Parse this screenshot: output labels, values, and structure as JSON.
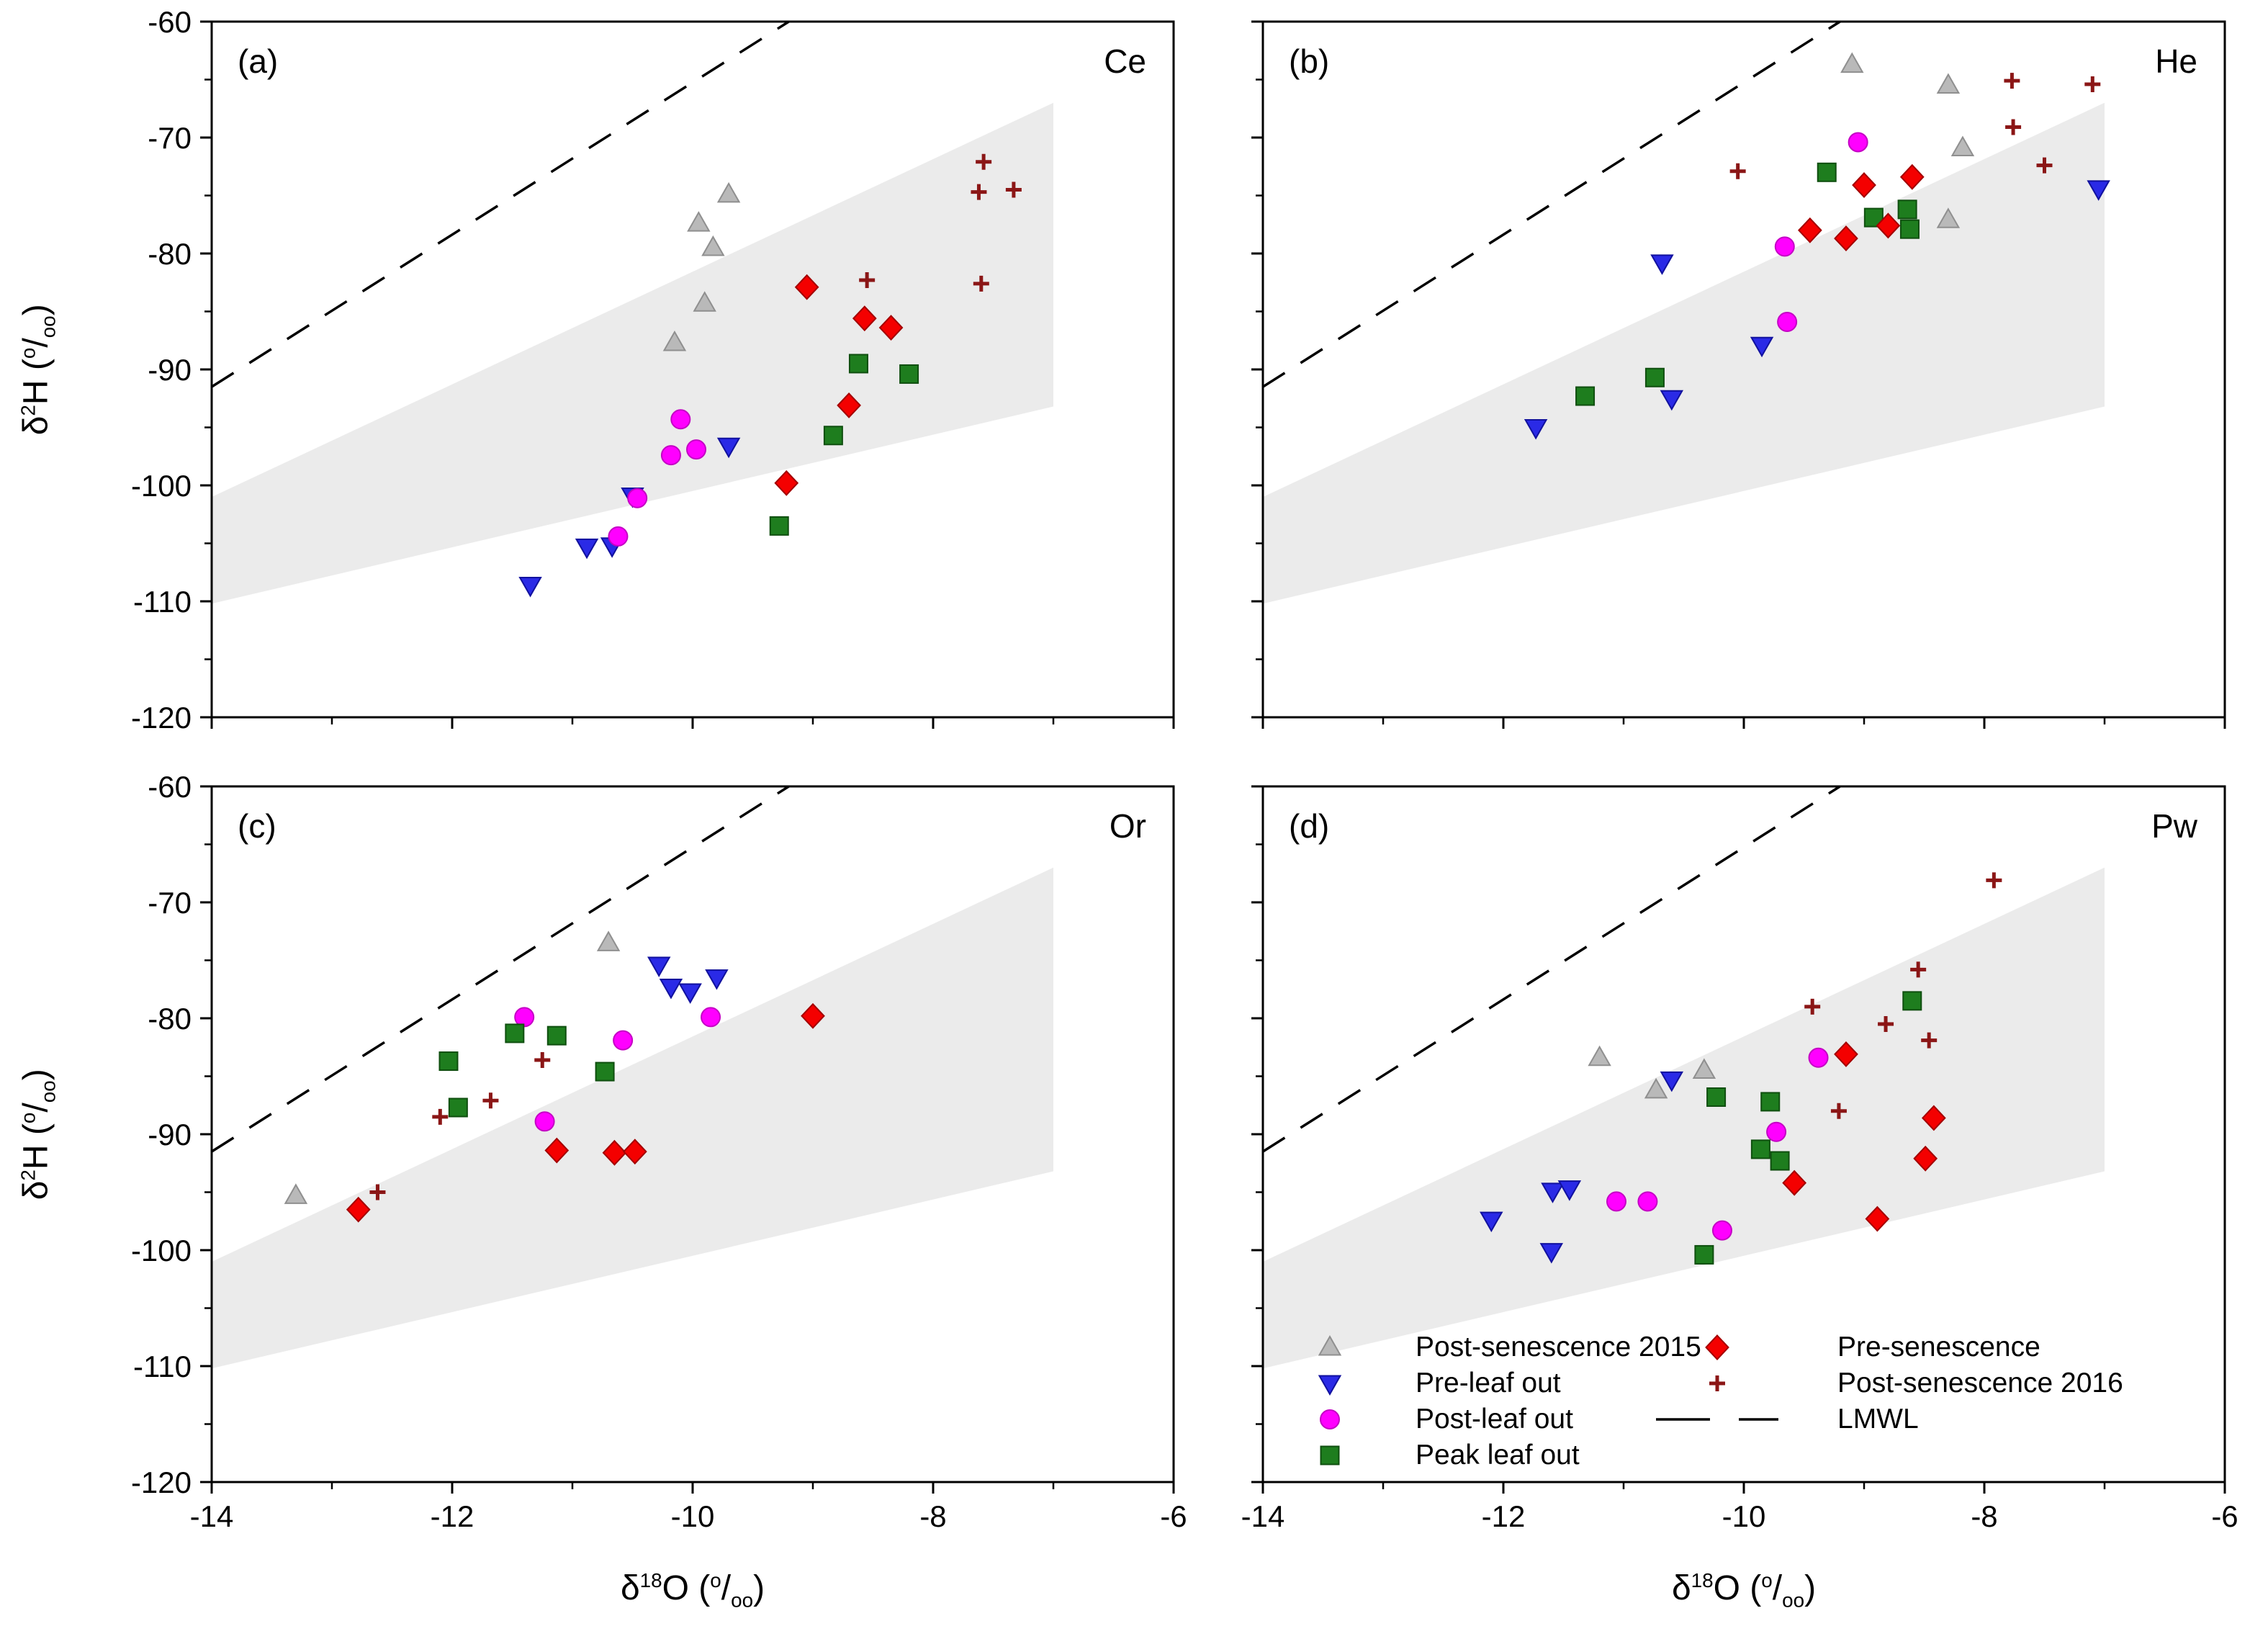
{
  "labels": {
    "y_axis": {
      "delta": "δ",
      "iso": "2",
      "rest": "H (",
      "permil_sup": "o",
      "permil_slash": "/",
      "permil_sub": "oo",
      "close": ")"
    },
    "x_axis": {
      "delta": "δ",
      "iso": "18",
      "rest": "O (",
      "permil_sup": "o",
      "permil_slash": "/",
      "permil_sub": "oo",
      "close": ")"
    }
  },
  "chart_data": {
    "type": "scatter",
    "x_axis": {
      "label": "δ18O (o/oo)",
      "min": -14,
      "max": -6,
      "major_ticks": [
        -14,
        -12,
        -10,
        -8,
        -6
      ],
      "minor_ticks": [
        -13,
        -11,
        -9,
        -7
      ]
    },
    "y_axis": {
      "label": "δ2H (o/oo)",
      "min": -120,
      "max": -60,
      "major_ticks": [
        -60,
        -70,
        -80,
        -90,
        -100,
        -110,
        -120
      ],
      "minor_ticks": [
        -65,
        -75,
        -85,
        -95,
        -105,
        -115
      ]
    },
    "lmwl": {
      "style": "dashed",
      "color": "#000000",
      "points": [
        [
          -14,
          -91.5
        ],
        [
          -9.2,
          -60
        ]
      ]
    },
    "envelope": {
      "fill": "#ebebeb",
      "polygon": [
        [
          -14,
          -101
        ],
        [
          -7,
          -67
        ],
        [
          -7,
          -93.2
        ],
        [
          -14,
          -110.2
        ]
      ]
    },
    "series_order": [
      "post2015",
      "preleaf",
      "postleaf",
      "peak",
      "presen",
      "post2016"
    ],
    "series_styles": [
      {
        "key": "post2015",
        "name": "Post-senescence 2015",
        "marker": "triangle-up",
        "color": "#b9b9b9",
        "stroke": "#8f8f8f"
      },
      {
        "key": "preleaf",
        "name": "Pre-leaf out",
        "marker": "triangle-down",
        "color": "#2a2ae6",
        "stroke": "#11119e"
      },
      {
        "key": "postleaf",
        "name": "Post-leaf out",
        "marker": "circle",
        "color": "#ff00ff",
        "stroke": "#c400c4"
      },
      {
        "key": "peak",
        "name": "Peak leaf out",
        "marker": "square",
        "color": "#1e7d1e",
        "stroke": "#0f4f0f"
      },
      {
        "key": "presen",
        "name": "Pre-senescence",
        "marker": "diamond",
        "color": "#f40000",
        "stroke": "#a30000"
      },
      {
        "key": "post2016",
        "name": "Post-senescence 2016",
        "marker": "plus",
        "color": "#8b1616"
      },
      {
        "key": "lmwl",
        "name": "LMWL",
        "marker": "dash",
        "color": "#000000"
      }
    ],
    "panels": [
      {
        "id": "a",
        "label": "(a)",
        "species": "Ce",
        "data": {
          "post2015": [
            [
              -9.7,
              -74.9
            ],
            [
              -9.95,
              -77.4
            ],
            [
              -9.83,
              -79.5
            ],
            [
              -9.9,
              -84.3
            ],
            [
              -10.15,
              -87.7
            ]
          ],
          "preleaf": [
            [
              -9.7,
              -96.6
            ],
            [
              -10.5,
              -100.9
            ],
            [
              -10.88,
              -105.3
            ],
            [
              -10.67,
              -105.2
            ],
            [
              -11.35,
              -108.6
            ]
          ],
          "postleaf": [
            [
              -10.1,
              -94.3
            ],
            [
              -10.18,
              -97.4
            ],
            [
              -9.97,
              -96.9
            ],
            [
              -10.46,
              -101.1
            ],
            [
              -10.62,
              -104.4
            ]
          ],
          "peak": [
            [
              -8.62,
              -89.5
            ],
            [
              -8.2,
              -90.4
            ],
            [
              -8.83,
              -95.7
            ],
            [
              -9.28,
              -103.5
            ]
          ],
          "presen": [
            [
              -9.05,
              -82.9
            ],
            [
              -8.57,
              -85.6
            ],
            [
              -8.35,
              -86.4
            ],
            [
              -8.7,
              -93.1
            ],
            [
              -9.22,
              -99.8
            ]
          ],
          "post2016": [
            [
              -7.58,
              -72.1
            ],
            [
              -7.33,
              -74.5
            ],
            [
              -7.62,
              -74.7
            ],
            [
              -8.55,
              -82.3
            ],
            [
              -7.6,
              -82.6
            ]
          ]
        }
      },
      {
        "id": "b",
        "label": "(b)",
        "species": "He",
        "data": {
          "post2015": [
            [
              -9.1,
              -63.7
            ],
            [
              -8.3,
              -65.5
            ],
            [
              -8.18,
              -70.9
            ],
            [
              -8.3,
              -77.1
            ]
          ],
          "preleaf": [
            [
              -7.05,
              -74.4
            ],
            [
              -10.68,
              -80.8
            ],
            [
              -9.85,
              -87.9
            ],
            [
              -10.6,
              -92.5
            ],
            [
              -11.73,
              -95.0
            ]
          ],
          "postleaf": [
            [
              -9.05,
              -70.4
            ],
            [
              -9.66,
              -79.4
            ],
            [
              -9.64,
              -85.9
            ]
          ],
          "peak": [
            [
              -9.31,
              -73.0
            ],
            [
              -8.92,
              -76.9
            ],
            [
              -8.64,
              -76.2
            ],
            [
              -8.62,
              -77.9
            ],
            [
              -10.74,
              -90.7
            ],
            [
              -11.32,
              -92.3
            ]
          ],
          "presen": [
            [
              -9.0,
              -74.1
            ],
            [
              -8.6,
              -73.4
            ],
            [
              -9.45,
              -78.0
            ],
            [
              -9.15,
              -78.7
            ],
            [
              -8.8,
              -77.6
            ]
          ],
          "post2016": [
            [
              -7.77,
              -65.1
            ],
            [
              -7.1,
              -65.4
            ],
            [
              -7.76,
              -69.1
            ],
            [
              -7.5,
              -72.4
            ],
            [
              -10.05,
              -72.9
            ]
          ]
        }
      },
      {
        "id": "c",
        "label": "(c)",
        "species": "Or",
        "data": {
          "post2015": [
            [
              -10.7,
              -73.5
            ],
            [
              -13.3,
              -95.3
            ]
          ],
          "preleaf": [
            [
              -10.28,
              -75.4
            ],
            [
              -10.18,
              -77.3
            ],
            [
              -10.02,
              -77.7
            ],
            [
              -9.8,
              -76.5
            ]
          ],
          "postleaf": [
            [
              -11.4,
              -79.9
            ],
            [
              -10.58,
              -81.9
            ],
            [
              -9.85,
              -79.9
            ],
            [
              -11.23,
              -88.9
            ]
          ],
          "peak": [
            [
              -11.48,
              -81.3
            ],
            [
              -11.13,
              -81.5
            ],
            [
              -12.03,
              -83.7
            ],
            [
              -10.73,
              -84.6
            ],
            [
              -11.95,
              -87.7
            ]
          ],
          "presen": [
            [
              -9.0,
              -79.8
            ],
            [
              -11.13,
              -91.4
            ],
            [
              -10.65,
              -91.6
            ],
            [
              -10.48,
              -91.5
            ],
            [
              -12.78,
              -96.5
            ]
          ],
          "post2016": [
            [
              -12.62,
              -95.0
            ],
            [
              -12.1,
              -88.5
            ],
            [
              -11.68,
              -87.1
            ],
            [
              -11.25,
              -83.6
            ]
          ]
        }
      },
      {
        "id": "d",
        "label": "(d)",
        "species": "Pw",
        "data": {
          "post2015": [
            [
              -11.2,
              -83.4
            ],
            [
              -10.73,
              -86.2
            ],
            [
              -10.33,
              -84.5
            ]
          ],
          "preleaf": [
            [
              -10.6,
              -85.3
            ],
            [
              -12.1,
              -97.4
            ],
            [
              -11.59,
              -94.9
            ],
            [
              -11.45,
              -94.7
            ],
            [
              -11.6,
              -100.1
            ]
          ],
          "postleaf": [
            [
              -9.38,
              -83.4
            ],
            [
              -9.73,
              -89.8
            ],
            [
              -11.06,
              -95.8
            ],
            [
              -10.8,
              -95.8
            ],
            [
              -10.18,
              -98.3
            ]
          ],
          "peak": [
            [
              -8.6,
              -78.5
            ],
            [
              -10.23,
              -86.8
            ],
            [
              -9.78,
              -87.2
            ],
            [
              -9.86,
              -91.3
            ],
            [
              -9.7,
              -92.3
            ],
            [
              -10.33,
              -100.4
            ]
          ],
          "presen": [
            [
              -9.15,
              -83.1
            ],
            [
              -8.42,
              -88.6
            ],
            [
              -9.58,
              -94.2
            ],
            [
              -8.49,
              -92.1
            ],
            [
              -8.89,
              -97.3
            ]
          ],
          "post2016": [
            [
              -7.92,
              -68.1
            ],
            [
              -8.55,
              -75.8
            ],
            [
              -8.82,
              -80.5
            ],
            [
              -8.46,
              -81.9
            ],
            [
              -9.43,
              -79.0
            ],
            [
              -9.21,
              -88.0
            ]
          ]
        }
      }
    ]
  },
  "legend": {
    "columns": [
      [
        "post2015",
        "preleaf",
        "postleaf",
        "peak"
      ],
      [
        "presen",
        "post2016",
        "lmwl"
      ]
    ]
  }
}
